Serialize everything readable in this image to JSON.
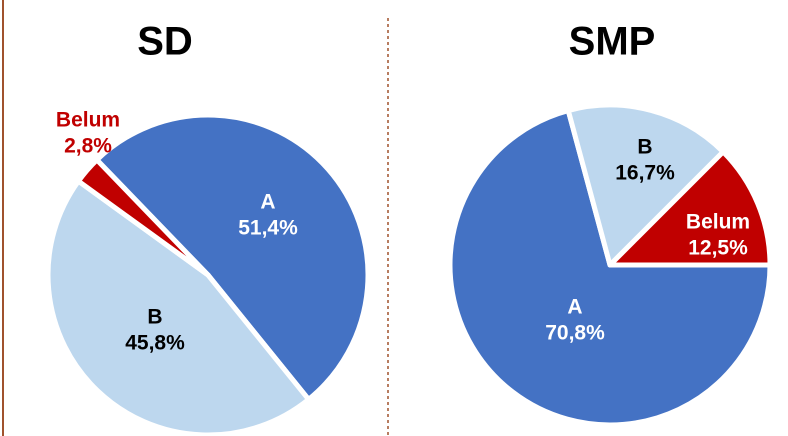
{
  "chart_data": [
    {
      "type": "pie",
      "title": "SD",
      "categories": [
        "A",
        "B",
        "Belum"
      ],
      "values": [
        51.4,
        45.8,
        2.8
      ],
      "value_labels": [
        "51,4%",
        "45,8%",
        "2,8%"
      ],
      "colors": [
        "#4472c4",
        "#bdd7ee",
        "#c00000"
      ]
    },
    {
      "type": "pie",
      "title": "SMP",
      "categories": [
        "A",
        "B",
        "Belum"
      ],
      "values": [
        70.8,
        16.7,
        12.5
      ],
      "value_labels": [
        "70,8%",
        "16,7%",
        "12,5%"
      ],
      "colors": [
        "#4472c4",
        "#bdd7ee",
        "#c00000"
      ]
    }
  ]
}
